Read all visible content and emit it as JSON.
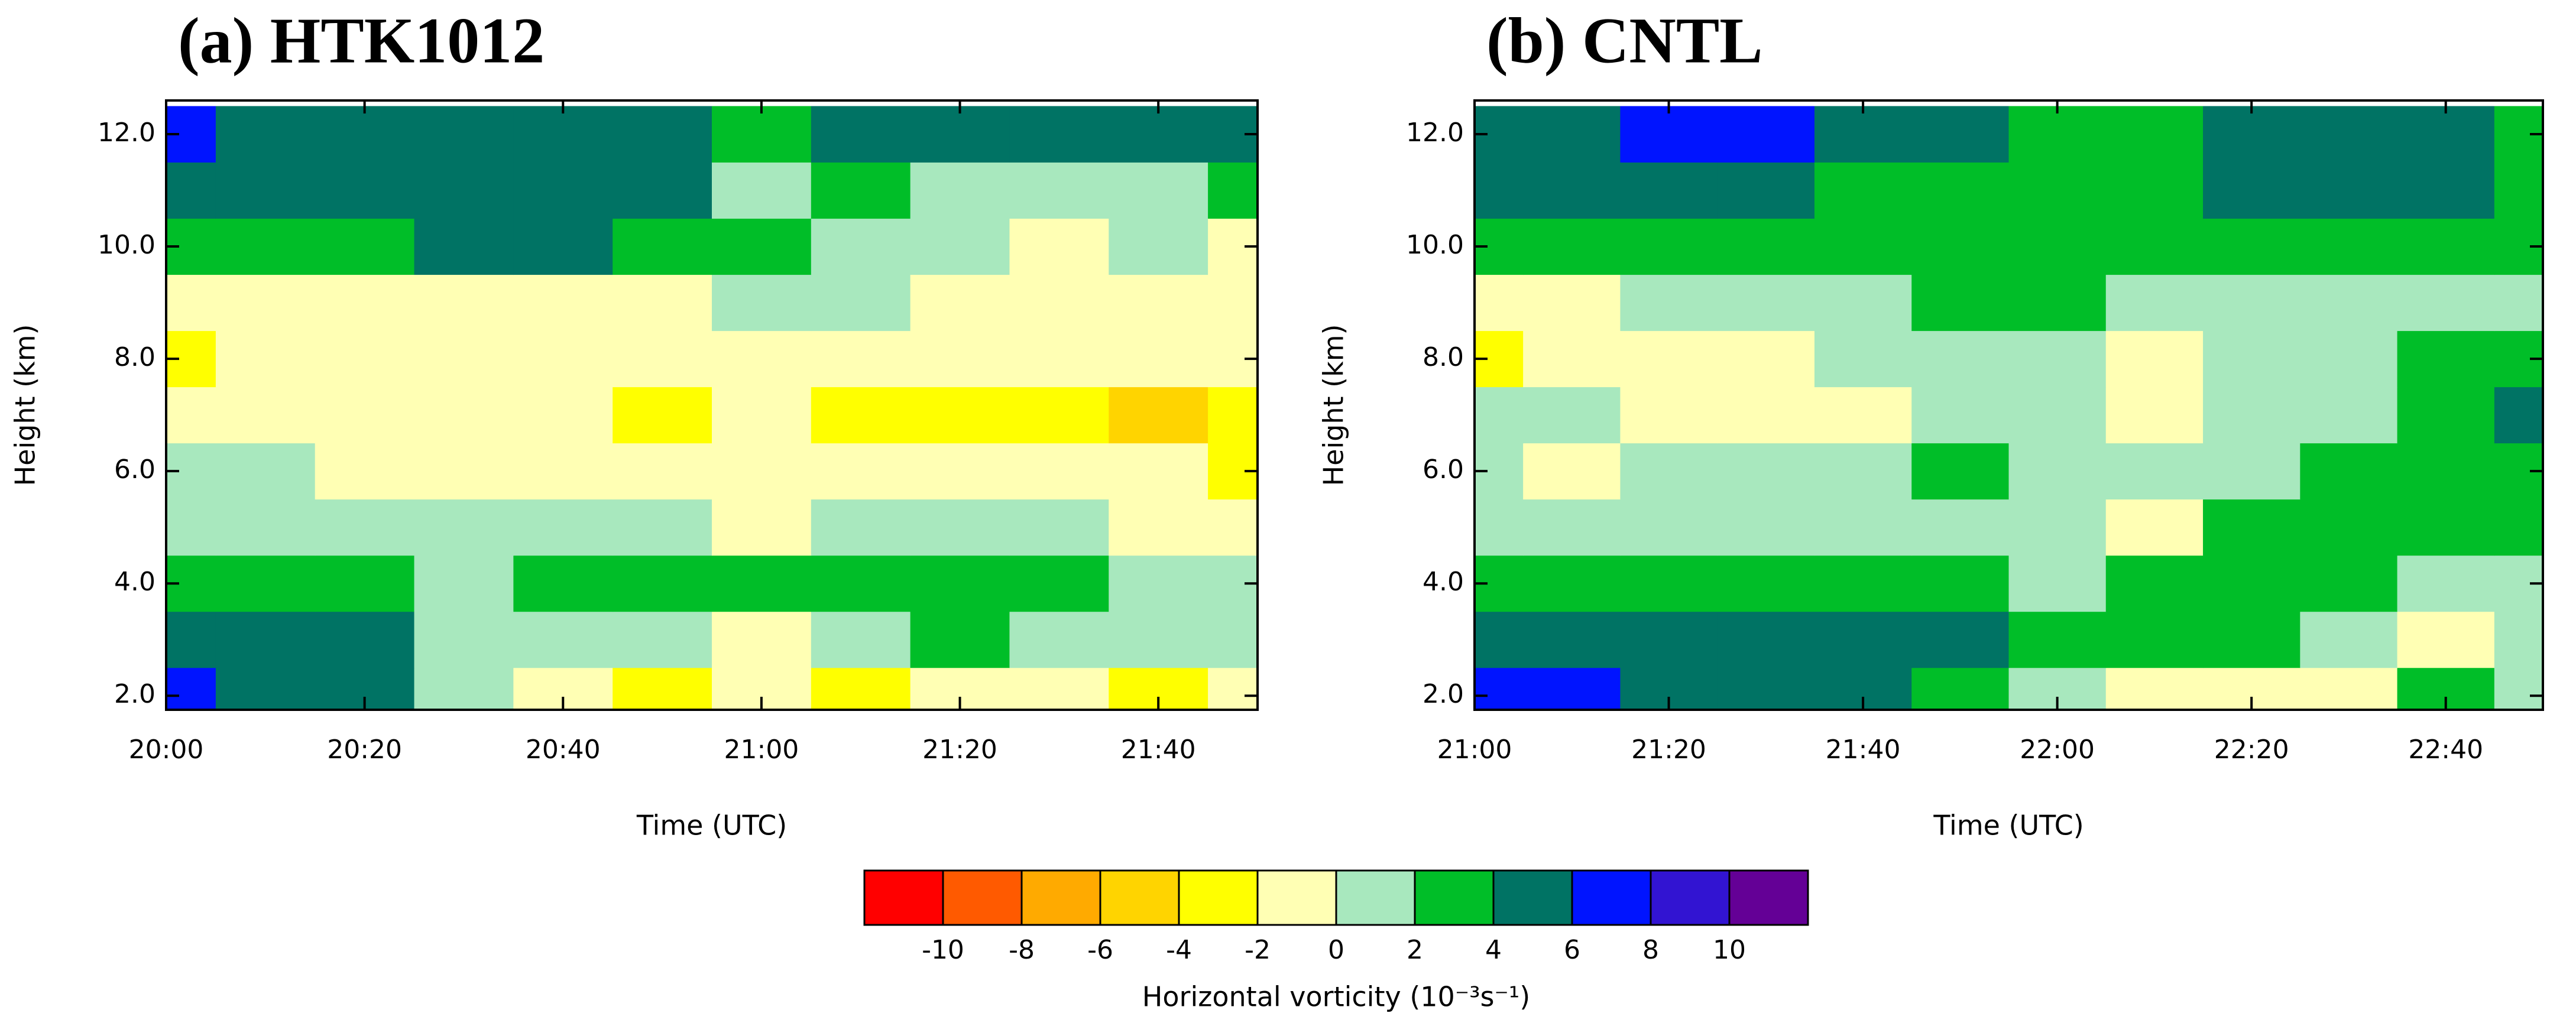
{
  "chart_data": [
    {
      "type": "contour",
      "title": "(a) HTK1012",
      "xlabel": "Time (UTC)",
      "ylabel": "Height (km)",
      "x": [
        0,
        10,
        20,
        30,
        40,
        50,
        60,
        70,
        80,
        90,
        100,
        110
      ],
      "y": [
        2,
        3,
        4,
        5,
        6,
        7,
        8,
        9,
        10,
        11,
        12
      ],
      "xlim": [
        0,
        110
      ],
      "ylim": [
        1.75,
        12.6
      ],
      "xticks": [
        {
          "value": 0,
          "label": "20:00"
        },
        {
          "value": 20,
          "label": "20:20"
        },
        {
          "value": 40,
          "label": "20:40"
        },
        {
          "value": 60,
          "label": "21:00"
        },
        {
          "value": 80,
          "label": "21:20"
        },
        {
          "value": 100,
          "label": "21:40"
        }
      ],
      "yticks": [
        {
          "value": 2,
          "label": "2.0"
        },
        {
          "value": 4,
          "label": "4.0"
        },
        {
          "value": 6,
          "label": "6.0"
        },
        {
          "value": 8,
          "label": "8.0"
        },
        {
          "value": 10,
          "label": "10.0"
        },
        {
          "value": 12,
          "label": "12.0"
        }
      ],
      "z": [
        [
          7,
          5,
          5,
          1,
          -1,
          -3,
          -1,
          -3,
          -1,
          -1,
          -3,
          -1
        ],
        [
          5,
          5,
          5,
          1,
          1,
          1,
          -1,
          1,
          3,
          1,
          1,
          1
        ],
        [
          3,
          3,
          3,
          1,
          3,
          3,
          3,
          3,
          3,
          3,
          1,
          1
        ],
        [
          1,
          1,
          1,
          1,
          1,
          1,
          -1,
          1,
          1,
          1,
          -1,
          -1
        ],
        [
          1,
          1,
          -1,
          -1,
          -1,
          -1,
          -1,
          -1,
          -1,
          -1,
          -1,
          -3
        ],
        [
          -1,
          -1,
          -1,
          -1,
          -1,
          -3,
          -1,
          -3,
          -3,
          -3,
          -5,
          -3
        ],
        [
          -3,
          -1,
          -1,
          -1,
          -1,
          -1,
          -1,
          -1,
          -1,
          -1,
          -1,
          -1
        ],
        [
          -1,
          -1,
          -1,
          -1,
          -1,
          -1,
          1,
          1,
          -1,
          -1,
          -1,
          -1
        ],
        [
          3,
          3,
          3,
          5,
          5,
          3,
          3,
          1,
          1,
          -1,
          1,
          -1
        ],
        [
          5,
          5,
          5,
          5,
          5,
          5,
          1,
          3,
          1,
          1,
          1,
          3
        ],
        [
          7,
          5,
          5,
          5,
          5,
          5,
          3,
          5,
          5,
          5,
          5,
          5
        ]
      ]
    },
    {
      "type": "contour",
      "title": "(b) CNTL",
      "xlabel": "Time (UTC)",
      "ylabel": "Height (km)",
      "x": [
        0,
        10,
        20,
        30,
        40,
        50,
        60,
        70,
        80,
        90,
        100,
        110
      ],
      "y": [
        2,
        3,
        4,
        5,
        6,
        7,
        8,
        9,
        10,
        11,
        12
      ],
      "xlim": [
        0,
        110
      ],
      "ylim": [
        1.75,
        12.6
      ],
      "xticks": [
        {
          "value": 0,
          "label": "21:00"
        },
        {
          "value": 20,
          "label": "21:20"
        },
        {
          "value": 40,
          "label": "21:40"
        },
        {
          "value": 60,
          "label": "22:00"
        },
        {
          "value": 80,
          "label": "22:20"
        },
        {
          "value": 100,
          "label": "22:40"
        }
      ],
      "yticks": [
        {
          "value": 2,
          "label": "2.0"
        },
        {
          "value": 4,
          "label": "4.0"
        },
        {
          "value": 6,
          "label": "6.0"
        },
        {
          "value": 8,
          "label": "8.0"
        },
        {
          "value": 10,
          "label": "10.0"
        },
        {
          "value": 12,
          "label": "12.0"
        }
      ],
      "z": [
        [
          7,
          7,
          5,
          5,
          5,
          3,
          1,
          -1,
          -1,
          -1,
          3,
          1
        ],
        [
          5,
          5,
          5,
          5,
          5,
          5,
          3,
          3,
          3,
          1,
          -1,
          1
        ],
        [
          3,
          3,
          3,
          3,
          3,
          3,
          1,
          3,
          3,
          3,
          1,
          1
        ],
        [
          1,
          1,
          1,
          1,
          1,
          1,
          1,
          -1,
          3,
          3,
          3,
          3
        ],
        [
          1,
          -1,
          1,
          1,
          1,
          3,
          1,
          1,
          1,
          3,
          3,
          3
        ],
        [
          1,
          1,
          -1,
          -1,
          -1,
          1,
          1,
          -1,
          1,
          1,
          3,
          5
        ],
        [
          -3,
          -1,
          -1,
          -1,
          1,
          1,
          1,
          -1,
          1,
          1,
          3,
          3
        ],
        [
          -1,
          -1,
          1,
          1,
          1,
          3,
          3,
          1,
          1,
          1,
          1,
          1
        ],
        [
          3,
          3,
          3,
          3,
          3,
          3,
          3,
          3,
          3,
          3,
          3,
          3
        ],
        [
          5,
          5,
          5,
          5,
          3,
          3,
          3,
          3,
          5,
          5,
          5,
          3
        ],
        [
          5,
          5,
          7,
          7,
          5,
          5,
          3,
          3,
          5,
          5,
          5,
          3
        ]
      ]
    }
  ],
  "colorbar": {
    "label": "Horizontal vorticity (10⁻³s⁻¹)",
    "levels": [
      -10,
      -8,
      -6,
      -4,
      -2,
      0,
      2,
      4,
      6,
      8,
      10
    ],
    "colors": [
      "#ff0000",
      "#ff5a00",
      "#ffaa00",
      "#ffd400",
      "#ffff00",
      "#ffffb4",
      "#a8e8be",
      "#00be28",
      "#007364",
      "#0014ff",
      "#3214d2",
      "#640096"
    ]
  }
}
